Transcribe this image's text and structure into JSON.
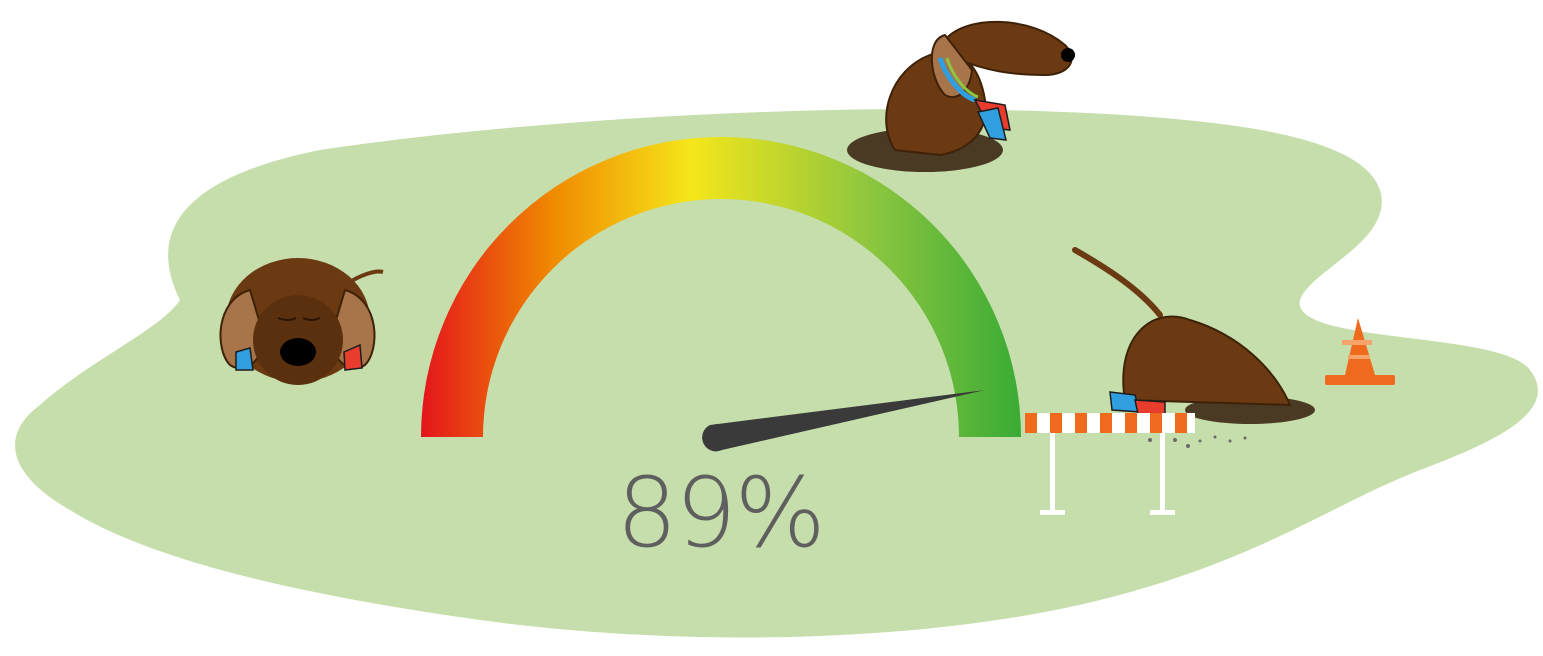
{
  "gauge": {
    "value": 0.89,
    "value_label": "89%",
    "gradient_colors": [
      "#e4151c",
      "#f08a00",
      "#f5e61a",
      "#8dc63f",
      "#3aab35"
    ]
  },
  "colors": {
    "grass": "#c5deab",
    "dog_brown": "#6b3a12",
    "dog_ear": "#a8744a",
    "needle": "#3a3a3a",
    "cone": "#f06a1d"
  },
  "scene": {
    "characters": [
      "dog-hiding-icon",
      "dog-sitting-icon",
      "dog-digging-icon"
    ],
    "props": [
      "hurdle-icon",
      "traffic-cone-icon"
    ]
  }
}
